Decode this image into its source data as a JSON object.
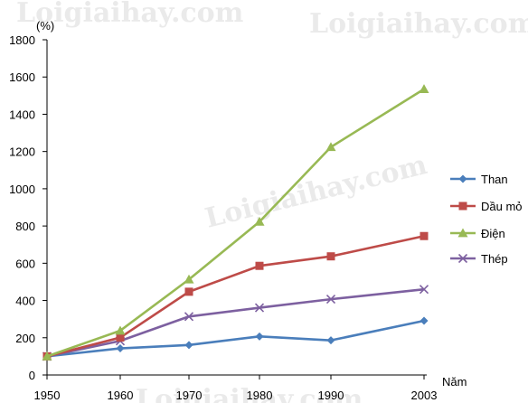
{
  "watermark": "Loigiaihay.com",
  "chart_data": {
    "type": "line",
    "title": "",
    "ylabel": "(%)",
    "xlabel": "Năm",
    "ylim": [
      0,
      1800
    ],
    "yticks": [
      0,
      200,
      400,
      600,
      800,
      1000,
      1200,
      1400,
      1600,
      1800
    ],
    "x": [
      1950,
      1960,
      1970,
      1980,
      1990,
      2003
    ],
    "x_tick_labels": [
      "1950",
      "1960",
      "1970",
      "1980",
      "1990",
      "2003"
    ],
    "grid": false,
    "legend_position": "right",
    "series": [
      {
        "name": "Than",
        "color": "#4a7ebb",
        "marker": "diamond",
        "values": [
          100,
          143,
          161,
          207,
          186,
          291
        ]
      },
      {
        "name": "Dầu mỏ",
        "color": "#be4b48",
        "marker": "square",
        "values": [
          100,
          201,
          447,
          586,
          637,
          746
        ]
      },
      {
        "name": "Điện",
        "color": "#98b954",
        "marker": "triangle",
        "values": [
          100,
          238,
          513,
          823,
          1224,
          1535
        ]
      },
      {
        "name": "Thép",
        "color": "#7d60a0",
        "marker": "x",
        "values": [
          100,
          183,
          314,
          361,
          407,
          460
        ]
      }
    ]
  }
}
